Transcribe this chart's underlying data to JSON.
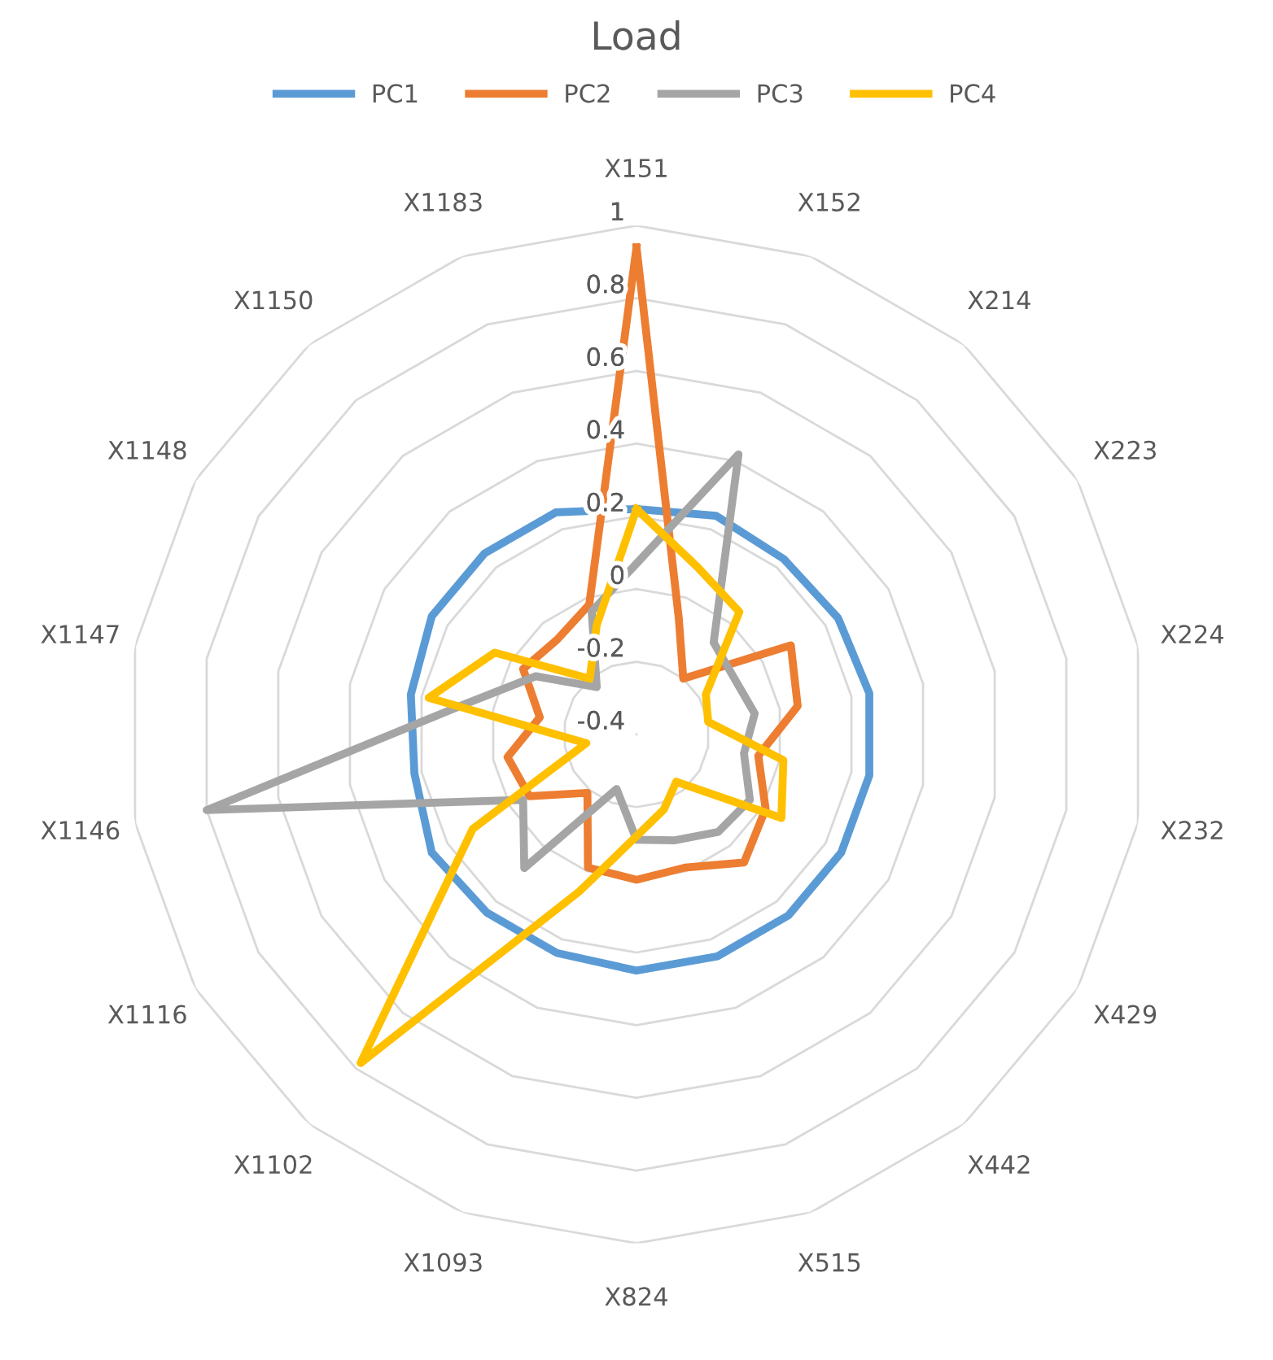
{
  "chart_data": {
    "type": "radar",
    "title": "Load",
    "categories": [
      "X151",
      "X152",
      "X214",
      "X223",
      "X224",
      "X232",
      "X429",
      "X442",
      "X515",
      "X824",
      "X1093",
      "X1102",
      "X1116",
      "X1146",
      "X1147",
      "X1148",
      "X1150",
      "X1183"
    ],
    "series": [
      {
        "name": "PC1",
        "color": "#5b9bd5",
        "values": [
          0.22,
          0.24,
          0.23,
          0.24,
          0.25,
          0.25,
          0.25,
          0.25,
          0.25,
          0.25,
          0.24,
          0.24,
          0.25,
          0.22,
          0.23,
          0.25,
          0.25,
          0.25
        ]
      },
      {
        "name": "PC2",
        "color": "#ed7d31",
        "values": [
          0.94,
          -0.06,
          -0.2,
          0.09,
          0.05,
          -0.06,
          0.01,
          0.06,
          -0.01,
          0.0,
          -0.01,
          -0.19,
          -0.06,
          -0.04,
          -0.13,
          -0.04,
          -0.06,
          -0.02
        ]
      },
      {
        "name": "PC3",
        "color": "#a5a5a5",
        "values": [
          0.07,
          0.42,
          -0.07,
          -0.09,
          -0.07,
          -0.1,
          -0.04,
          -0.05,
          -0.09,
          -0.11,
          -0.24,
          0.08,
          -0.04,
          0.8,
          0.08,
          -0.08,
          -0.23,
          -0.04
        ]
      },
      {
        "name": "PC4",
        "color": "#ffc000",
        "values": [
          0.22,
          0.09,
          0.04,
          -0.18,
          -0.2,
          0.01,
          0.06,
          -0.23,
          -0.18,
          -0.12,
          0.06,
          0.78,
          0.12,
          -0.26,
          0.18,
          0.05,
          -0.2,
          -0.08
        ]
      }
    ],
    "ylim": [
      -0.4,
      1
    ],
    "yticks": [
      -0.4,
      -0.2,
      0,
      0.2,
      0.4,
      0.6,
      0.8,
      1
    ],
    "grid": true,
    "legend": "top"
  }
}
